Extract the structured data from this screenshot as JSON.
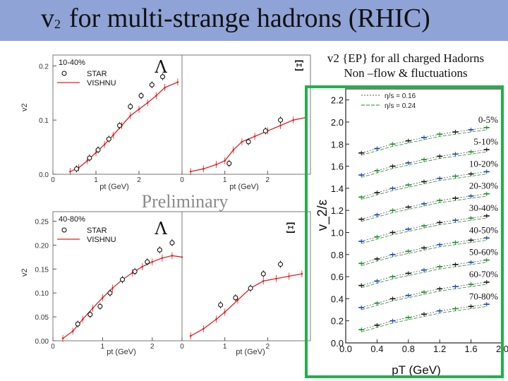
{
  "slide": {
    "title_v": "v",
    "title_sub": "2",
    "title_rest": "for multi-strange hadrons (RHIC)",
    "preliminary": "Preliminary"
  },
  "right_caption": {
    "line1": "v2 {EP} for all charged Hadorns",
    "line2": "Non –flow & fluctuations"
  },
  "colors": {
    "title_bar": "#8fa3d6",
    "frame": "#22b04a",
    "vishnu": "#e02020",
    "star": "#000000"
  },
  "chart_data": [
    {
      "type": "scatter",
      "panel": "Lambda 10-40%",
      "particle": "Λ",
      "centrality": "10-40%",
      "xlabel": "p_t (GeV)",
      "ylabel": "v_2",
      "xlim": [
        0,
        3
      ],
      "ylim": [
        0,
        0.22
      ],
      "x_ticks": [
        "0",
        "1",
        "2"
      ],
      "y_ticks": [
        "0.0",
        "0.1",
        "0.2"
      ],
      "legend": [
        "STAR",
        "VISHNU"
      ],
      "series": [
        {
          "name": "STAR",
          "style": "open-circle",
          "x": [
            0.55,
            0.85,
            1.05,
            1.3,
            1.55,
            1.8,
            2.05,
            2.3,
            2.55
          ],
          "y": [
            0.01,
            0.03,
            0.045,
            0.065,
            0.09,
            0.125,
            0.145,
            0.165,
            0.18
          ]
        },
        {
          "name": "VISHNU",
          "style": "red-line",
          "x": [
            0.4,
            0.6,
            0.8,
            1.0,
            1.2,
            1.4,
            1.6,
            1.8,
            2.0,
            2.2,
            2.4,
            2.6,
            2.9
          ],
          "y": [
            0.005,
            0.012,
            0.025,
            0.04,
            0.055,
            0.072,
            0.09,
            0.108,
            0.12,
            0.132,
            0.145,
            0.16,
            0.17
          ]
        }
      ]
    },
    {
      "type": "scatter",
      "panel": "Xi 10-40%",
      "particle": "Ξ",
      "centrality": "10-40%",
      "xlabel": "p_t (GeV)",
      "ylabel": "v_2",
      "xlim": [
        0,
        3
      ],
      "ylim": [
        0,
        0.22
      ],
      "x_ticks": [
        "0",
        "1",
        "2"
      ],
      "y_ticks": [],
      "legend": [],
      "series": [
        {
          "name": "STAR",
          "style": "open-circle",
          "x": [
            1.1,
            1.55,
            1.95,
            2.3
          ],
          "y": [
            0.02,
            0.06,
            0.08,
            0.1
          ]
        },
        {
          "name": "VISHNU",
          "style": "red-line",
          "x": [
            0.2,
            0.5,
            0.8,
            1.0,
            1.2,
            1.4,
            1.7,
            2.0,
            2.3,
            2.6,
            2.9
          ],
          "y": [
            0.005,
            0.01,
            0.018,
            0.025,
            0.045,
            0.06,
            0.07,
            0.08,
            0.09,
            0.1,
            0.105
          ]
        }
      ]
    },
    {
      "type": "scatter",
      "panel": "Lambda 40-80%",
      "particle": "Λ",
      "centrality": "40-80%",
      "xlabel": "p_t (GeV)",
      "ylabel": "v_2",
      "xlim": [
        0,
        2.6
      ],
      "ylim": [
        0,
        0.27
      ],
      "x_ticks": [
        "0",
        "1",
        "2"
      ],
      "y_ticks": [
        "0.00",
        "0.05",
        "0.10",
        "0.15",
        "0.20",
        "0.25"
      ],
      "legend": [
        "STAR",
        "VISHNU"
      ],
      "series": [
        {
          "name": "STAR",
          "style": "open-circle",
          "x": [
            0.5,
            0.75,
            0.95,
            1.15,
            1.4,
            1.65,
            1.9,
            2.15,
            2.4
          ],
          "y": [
            0.035,
            0.055,
            0.072,
            0.1,
            0.128,
            0.145,
            0.165,
            0.19,
            0.205
          ]
        },
        {
          "name": "VISHNU",
          "style": "red-line",
          "x": [
            0.2,
            0.4,
            0.6,
            0.8,
            1.0,
            1.2,
            1.4,
            1.6,
            1.8,
            2.0,
            2.2,
            2.4,
            2.6
          ],
          "y": [
            0.005,
            0.02,
            0.045,
            0.068,
            0.09,
            0.11,
            0.128,
            0.142,
            0.155,
            0.165,
            0.173,
            0.178,
            0.175
          ]
        }
      ]
    },
    {
      "type": "scatter",
      "panel": "Xi 40-80%",
      "particle": "Ξ",
      "centrality": "40-80%",
      "xlabel": "p_t (GeV)",
      "ylabel": "v_2",
      "xlim": [
        0,
        3
      ],
      "ylim": [
        0,
        0.27
      ],
      "x_ticks": [
        "0",
        "1",
        "2"
      ],
      "y_ticks": [],
      "legend": [],
      "series": [
        {
          "name": "STAR",
          "style": "open-circle",
          "x": [
            0.9,
            1.25,
            1.6,
            1.9,
            2.3
          ],
          "y": [
            0.075,
            0.09,
            0.11,
            0.14,
            0.16
          ]
        },
        {
          "name": "VISHNU",
          "style": "red-line",
          "x": [
            0.2,
            0.5,
            0.8,
            1.0,
            1.3,
            1.6,
            1.9,
            2.2,
            2.5,
            2.8
          ],
          "y": [
            0.01,
            0.025,
            0.045,
            0.06,
            0.085,
            0.11,
            0.125,
            0.13,
            0.135,
            0.14
          ]
        }
      ]
    },
    {
      "type": "scatter",
      "panel": "charged hadrons v2/epsilon",
      "xlabel": "p_T (GeV)",
      "ylabel": "v_2/ε",
      "xlim": [
        0,
        2.0
      ],
      "ylim": [
        0,
        2.3
      ],
      "x_ticks": [
        "0.0",
        "0.4",
        "0.8",
        "1.2",
        "1.6",
        "2.0"
      ],
      "y_ticks": [
        "0.0",
        "0.2",
        "0.4",
        "0.6",
        "0.8",
        "1.0",
        "1.2",
        "1.4",
        "1.6",
        "1.8",
        "2.0",
        "2.2"
      ],
      "legend": [
        "η/s = 0.16",
        "η/s = 0.24"
      ],
      "centralities": [
        "0-5%",
        "5-10%",
        "10-20%",
        "20-30%",
        "30-40%",
        "40-50%",
        "50-60%",
        "60-70%",
        "70-80%"
      ],
      "offsets": [
        2.0,
        1.8,
        1.6,
        1.4,
        1.2,
        1.0,
        0.8,
        0.6,
        0.4
      ],
      "x": [
        0.2,
        0.4,
        0.6,
        0.8,
        1.0,
        1.2,
        1.4,
        1.6,
        1.8
      ],
      "shape_y": [
        0.02,
        0.06,
        0.1,
        0.13,
        0.16,
        0.19,
        0.21,
        0.23,
        0.25
      ]
    }
  ]
}
